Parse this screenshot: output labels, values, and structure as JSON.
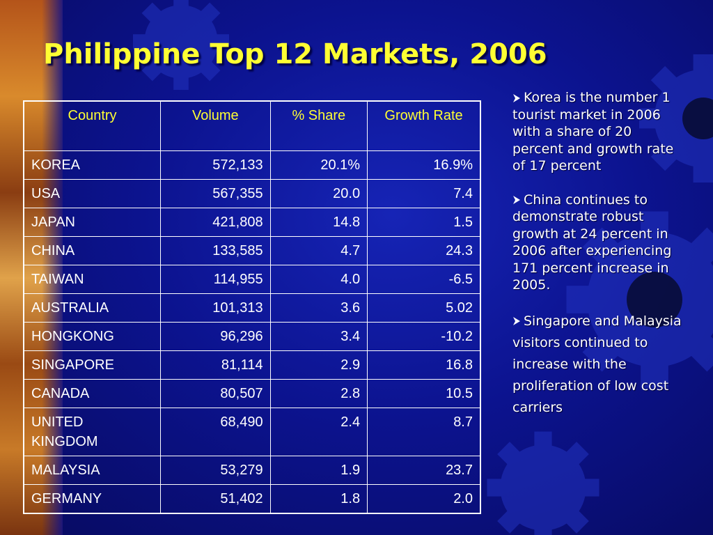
{
  "slide": {
    "title": "Philippine Top 12 Markets, 2006"
  },
  "table": {
    "headers": [
      "Country",
      "Volume",
      "% Share",
      "Growth Rate"
    ],
    "rows": [
      {
        "country": "KOREA",
        "volume": "572,133",
        "share": "20.1%",
        "growth": "16.9%"
      },
      {
        "country": "USA",
        "volume": "567,355",
        "share": "20.0",
        "growth": "7.4"
      },
      {
        "country": "JAPAN",
        "volume": "421,808",
        "share": "14.8",
        "growth": "1.5"
      },
      {
        "country": "CHINA",
        "volume": "133,585",
        "share": "4.7",
        "growth": "24.3"
      },
      {
        "country": "TAIWAN",
        "volume": "114,955",
        "share": "4.0",
        "growth": "-6.5"
      },
      {
        "country": "AUSTRALIA",
        "volume": "101,313",
        "share": "3.6",
        "growth": "5.02"
      },
      {
        "country": "HONGKONG",
        "volume": "96,296",
        "share": "3.4",
        "growth": "-10.2"
      },
      {
        "country": "SINGAPORE",
        "volume": "81,114",
        "share": "2.9",
        "growth": "16.8"
      },
      {
        "country": "CANADA",
        "volume": "80,507",
        "share": "2.8",
        "growth": "10.5"
      },
      {
        "country": "UNITED KINGDOM",
        "volume": "68,490",
        "share": "2.4",
        "growth": "8.7"
      },
      {
        "country": "MALAYSIA",
        "volume": "53,279",
        "share": "1.9",
        "growth": "23.7"
      },
      {
        "country": "GERMANY",
        "volume": "51,402",
        "share": "1.8",
        "growth": "2.0"
      }
    ]
  },
  "notes": {
    "items": [
      {
        "text": "Korea is the number 1 tourist market in 2006 with a share of 20 percent and growth rate of 17 percent"
      },
      {
        "text": "China continues to demonstrate robust growth at 24 percent in 2006 after experiencing 171 percent increase in 2005."
      },
      {
        "text": "Singapore and Malaysia visitors continued to increase with the proliferation of low cost carriers"
      }
    ]
  },
  "colors": {
    "background": "#0b0f8c",
    "title": "#ffff33",
    "header_text": "#ffff33",
    "body_text": "#ffffff",
    "table_border": "#ffffff"
  },
  "icons": {
    "bullet": "arrow-bullet-icon",
    "background_decoration": "gear-icon"
  }
}
